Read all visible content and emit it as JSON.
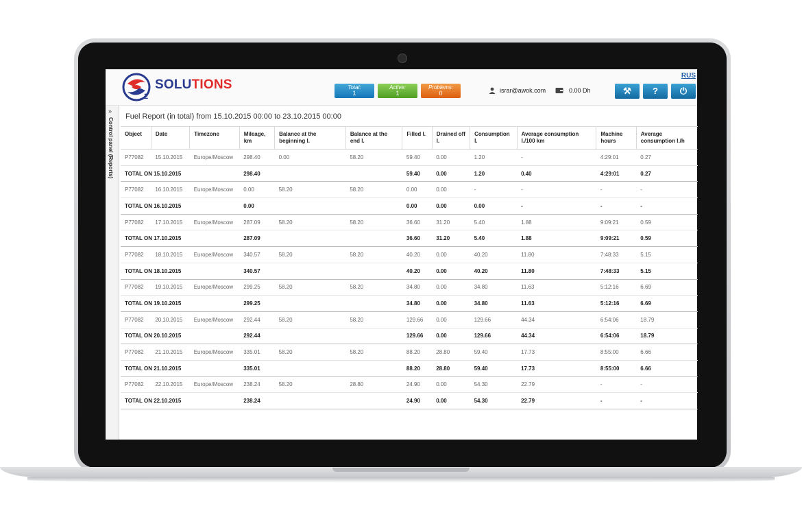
{
  "app": {
    "logo_text_a": "SOLU",
    "logo_text_b": "TIONS",
    "logo_sub": "2",
    "lang": "RUS"
  },
  "status": {
    "total_label": "Total:",
    "total_value": "1",
    "active_label": "Active:",
    "active_value": "1",
    "problems_label": "Problems:",
    "problems_value": "0"
  },
  "user": {
    "email": "israr@awok.com",
    "balance": "0.00 Dh"
  },
  "toolbar": {
    "settings_glyph": "⚒",
    "help_glyph": "?",
    "logout_glyph": "⏻"
  },
  "sidebar": {
    "toggle": "»",
    "label": "Control panel (Reports)"
  },
  "report": {
    "title": "Fuel Report (in total) from 15.10.2015 00:00 to 23.10.2015 00:00",
    "columns": [
      "Object",
      "Date",
      "Timezone",
      "Mileage, km",
      "Balance at the beginning l.",
      "Balance at the end l.",
      "Filled l.",
      "Drained off l.",
      "Consumption l.",
      "Average consumption l./100 km",
      "Machine hours",
      "Average consumption l./h"
    ],
    "rows": [
      {
        "total": false,
        "cells": [
          "P77082",
          "15.10.2015",
          "Europe/Moscow",
          "298.40",
          "0.00",
          "58.20",
          "59.40",
          "0.00",
          "1.20",
          "-",
          "4:29:01",
          "0.27"
        ]
      },
      {
        "total": true,
        "cells": [
          "TOTAL ON 15.10.2015",
          "",
          "",
          "298.40",
          "",
          "",
          "59.40",
          "0.00",
          "1.20",
          "0.40",
          "4:29:01",
          "0.27"
        ]
      },
      {
        "total": false,
        "cells": [
          "P77082",
          "16.10.2015",
          "Europe/Moscow",
          "0.00",
          "58.20",
          "58.20",
          "0.00",
          "0.00",
          "-",
          "-",
          "-",
          "-"
        ]
      },
      {
        "total": true,
        "cells": [
          "TOTAL ON 16.10.2015",
          "",
          "",
          "0.00",
          "",
          "",
          "0.00",
          "0.00",
          "0.00",
          "-",
          "-",
          "-"
        ]
      },
      {
        "total": false,
        "cells": [
          "P77082",
          "17.10.2015",
          "Europe/Moscow",
          "287.09",
          "58.20",
          "58.20",
          "36.60",
          "31.20",
          "5.40",
          "1.88",
          "9:09:21",
          "0.59"
        ]
      },
      {
        "total": true,
        "cells": [
          "TOTAL ON 17.10.2015",
          "",
          "",
          "287.09",
          "",
          "",
          "36.60",
          "31.20",
          "5.40",
          "1.88",
          "9:09:21",
          "0.59"
        ]
      },
      {
        "total": false,
        "cells": [
          "P77082",
          "18.10.2015",
          "Europe/Moscow",
          "340.57",
          "58.20",
          "58.20",
          "40.20",
          "0.00",
          "40.20",
          "11.80",
          "7:48:33",
          "5.15"
        ]
      },
      {
        "total": true,
        "cells": [
          "TOTAL ON 18.10.2015",
          "",
          "",
          "340.57",
          "",
          "",
          "40.20",
          "0.00",
          "40.20",
          "11.80",
          "7:48:33",
          "5.15"
        ]
      },
      {
        "total": false,
        "cells": [
          "P77082",
          "19.10.2015",
          "Europe/Moscow",
          "299.25",
          "58.20",
          "58.20",
          "34.80",
          "0.00",
          "34.80",
          "11.63",
          "5:12:16",
          "6.69"
        ]
      },
      {
        "total": true,
        "cells": [
          "TOTAL ON 19.10.2015",
          "",
          "",
          "299.25",
          "",
          "",
          "34.80",
          "0.00",
          "34.80",
          "11.63",
          "5:12:16",
          "6.69"
        ]
      },
      {
        "total": false,
        "cells": [
          "P77082",
          "20.10.2015",
          "Europe/Moscow",
          "292.44",
          "58.20",
          "58.20",
          "129.66",
          "0.00",
          "129.66",
          "44.34",
          "6:54:06",
          "18.79"
        ]
      },
      {
        "total": true,
        "cells": [
          "TOTAL ON 20.10.2015",
          "",
          "",
          "292.44",
          "",
          "",
          "129.66",
          "0.00",
          "129.66",
          "44.34",
          "6:54:06",
          "18.79"
        ]
      },
      {
        "total": false,
        "cells": [
          "P77082",
          "21.10.2015",
          "Europe/Moscow",
          "335.01",
          "58.20",
          "58.20",
          "88.20",
          "28.80",
          "59.40",
          "17.73",
          "8:55:00",
          "6.66"
        ]
      },
      {
        "total": true,
        "cells": [
          "TOTAL ON 21.10.2015",
          "",
          "",
          "335.01",
          "",
          "",
          "88.20",
          "28.80",
          "59.40",
          "17.73",
          "8:55:00",
          "6.66"
        ]
      },
      {
        "total": false,
        "cells": [
          "P77082",
          "22.10.2015",
          "Europe/Moscow",
          "238.24",
          "58.20",
          "28.80",
          "24.90",
          "0.00",
          "54.30",
          "22.79",
          "-",
          "-"
        ]
      },
      {
        "total": true,
        "cells": [
          "TOTAL ON 22.10.2015",
          "",
          "",
          "238.24",
          "",
          "",
          "24.90",
          "0.00",
          "54.30",
          "22.79",
          "-",
          "-"
        ]
      }
    ]
  },
  "colors": {
    "brand_blue": "#2a3b8f",
    "brand_red": "#e02b2b",
    "button_blue": "#1677b8",
    "active_green": "#4f9e25",
    "problems_orange": "#dd5f10"
  }
}
